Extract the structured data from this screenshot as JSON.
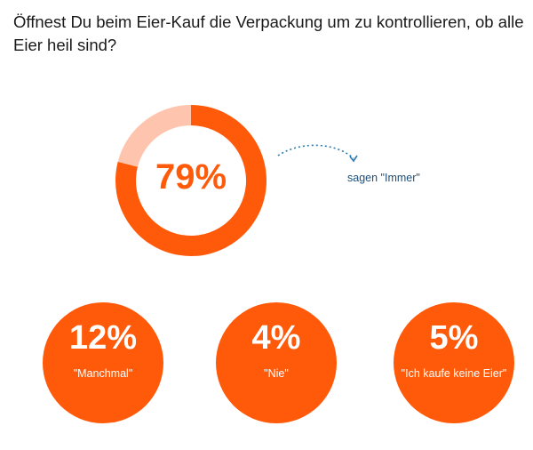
{
  "title": "Öffnest Du beim Eier-Kauf die Verpackung um zu kontrollieren, ob alle Eier heil sind?",
  "colors": {
    "accent": "#ff5a0a",
    "remainder": "#ffc4ad",
    "caption": "#1f4e79"
  },
  "chart_data": {
    "type": "pie",
    "title": "Öffnest Du beim Eier-Kauf die Verpackung um zu kontrollieren, ob alle Eier heil sind?",
    "categories": [
      "\"Immer\"",
      "\"Manchmal\"",
      "\"Nie\"",
      "\"Ich kaufe keine Eier\""
    ],
    "values": [
      79,
      12,
      4,
      5
    ],
    "main": {
      "value": 79,
      "label": "79%",
      "caption": "sagen \"Immer\""
    },
    "others": [
      {
        "value": 12,
        "label": "12%",
        "caption": "\"Manchmal\""
      },
      {
        "value": 4,
        "label": "4%",
        "caption": "\"Nie\""
      },
      {
        "value": 5,
        "label": "5%",
        "caption": "\"Ich kaufe keine Eier\""
      }
    ]
  }
}
